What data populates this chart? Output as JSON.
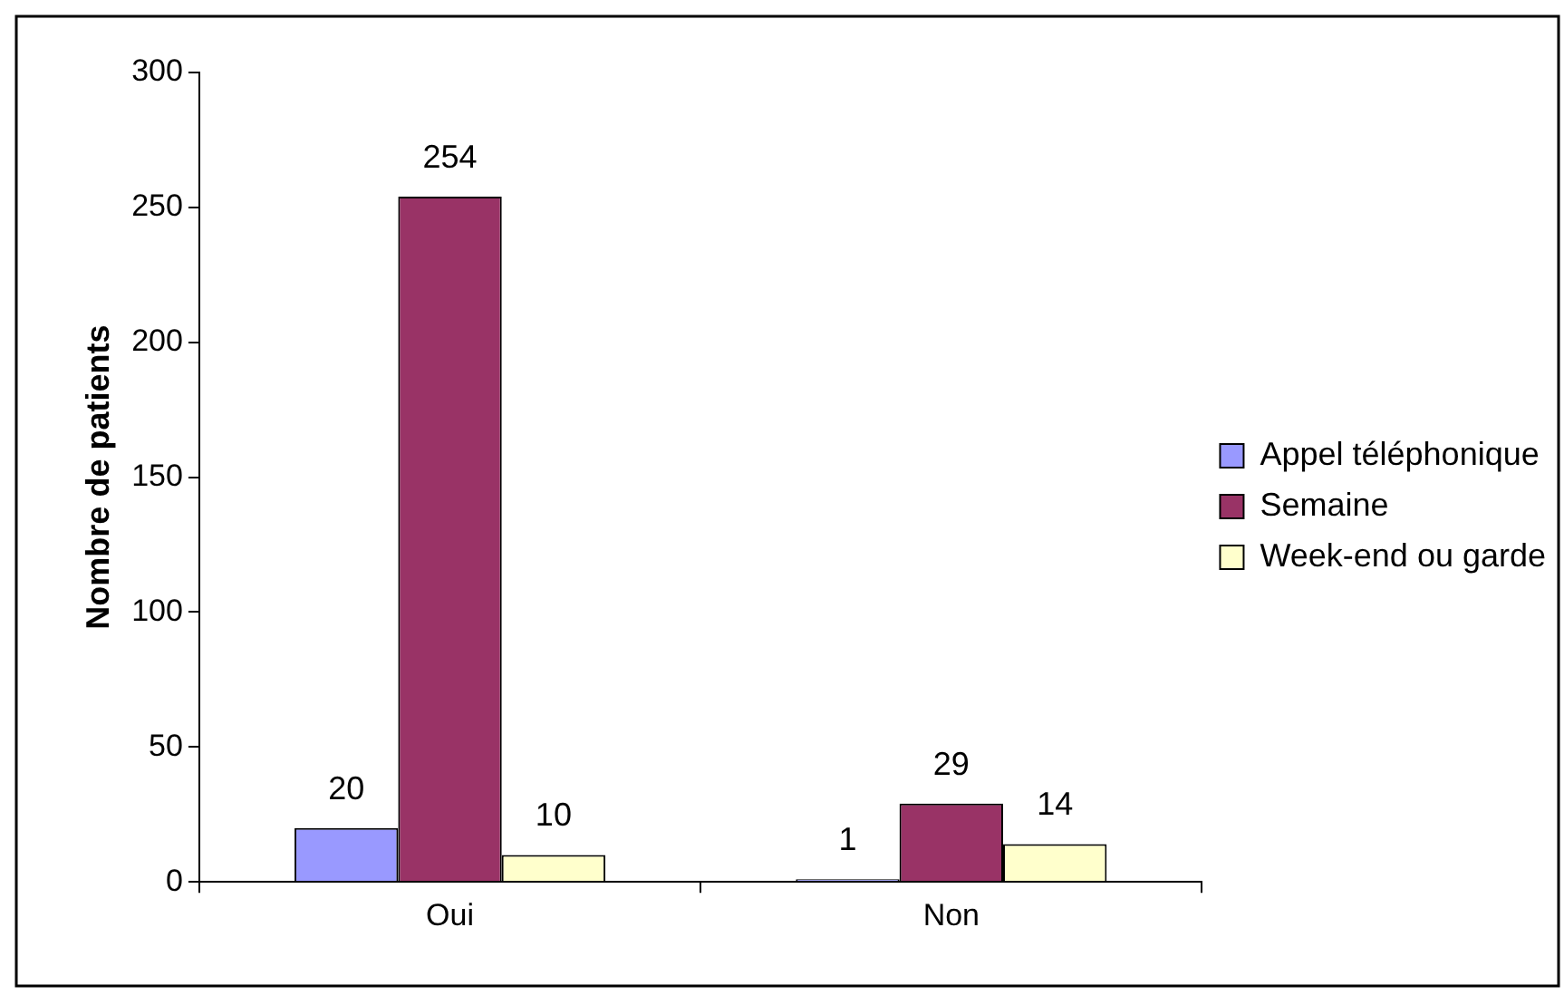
{
  "chart_data": {
    "type": "bar",
    "ylabel": "Nombre de patients",
    "categories": [
      "Oui",
      "Non"
    ],
    "series": [
      {
        "name": "Appel téléphonique",
        "color": "#9999ff",
        "values": [
          20,
          1
        ]
      },
      {
        "name": "Semaine",
        "color": "#993366",
        "values": [
          254,
          29
        ]
      },
      {
        "name": "Week-end ou garde",
        "color": "#ffffcc",
        "values": [
          10,
          14
        ]
      }
    ],
    "ylim": [
      0,
      300
    ],
    "yticks": [
      0,
      50,
      100,
      150,
      200,
      250,
      300
    ],
    "data_labels": true,
    "legend": "right"
  }
}
